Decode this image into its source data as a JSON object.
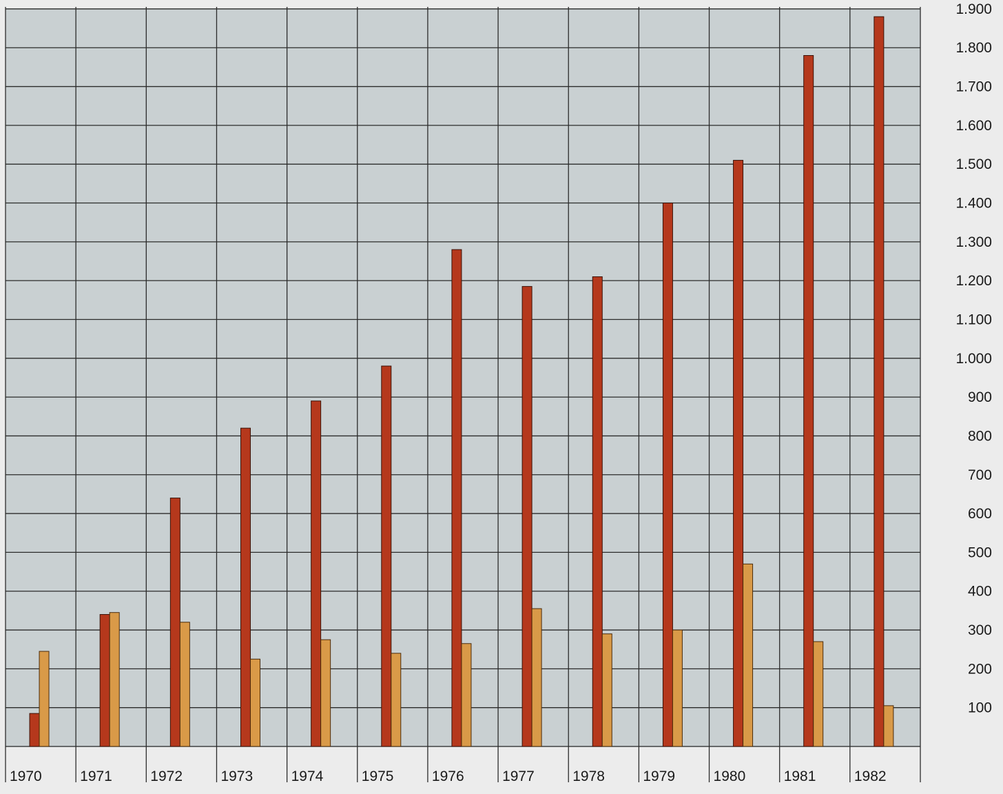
{
  "chart_data": {
    "type": "bar",
    "categories": [
      "1970",
      "1971",
      "1972",
      "1973",
      "1974",
      "1975",
      "1976",
      "1977",
      "1978",
      "1979",
      "1980",
      "1981",
      "1982"
    ],
    "series": [
      {
        "values": [
          85,
          340,
          640,
          820,
          890,
          980,
          1280,
          1185,
          1210,
          1400,
          1510,
          1780,
          1880
        ]
      },
      {
        "values": [
          245,
          345,
          320,
          225,
          275,
          240,
          265,
          355,
          290,
          300,
          470,
          270,
          105
        ]
      }
    ],
    "yticks": [
      "100",
      "200",
      "300",
      "400",
      "500",
      "600",
      "700",
      "800",
      "900",
      "1.000",
      "1.100",
      "1.200",
      "1.300",
      "1.400",
      "1.500",
      "1.600",
      "1.700",
      "1.800",
      "1.900"
    ],
    "ylim": [
      0,
      1900
    ],
    "grid": true,
    "colors": {
      "series_a": "#b5381c",
      "series_b": "#d99a48",
      "plot_background": "#c9d0d2",
      "grid": "#2b2b2b"
    },
    "title": "",
    "xlabel": "",
    "ylabel": ""
  }
}
